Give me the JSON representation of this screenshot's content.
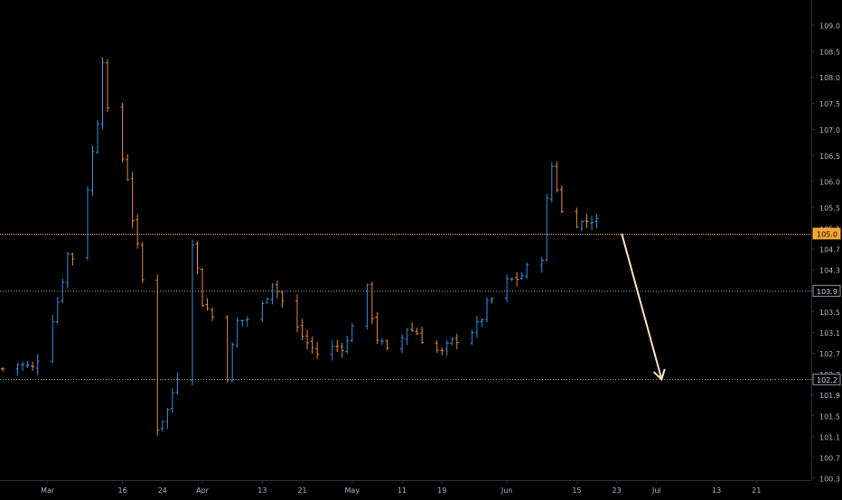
{
  "chart_data": {
    "type": "ohlc",
    "title": "",
    "xlabel": "",
    "ylabel": "",
    "ylim": [
      100.3,
      109.3
    ],
    "y_ticks": [
      "100.3",
      "100.7",
      "101.1",
      "101.5",
      "101.9",
      "102.3",
      "102.7",
      "103.1",
      "103.5",
      "103.9",
      "104.3",
      "104.7",
      "105.1",
      "105.5",
      "106.0",
      "106.5",
      "107.0",
      "107.5",
      "108.0",
      "108.5",
      "109.0"
    ],
    "x_ticks": [
      "Mar",
      "16",
      "24",
      "Apr",
      "13",
      "21",
      "May",
      "11",
      "19",
      "Jun",
      "15",
      "23",
      "Jul",
      "13",
      "21"
    ],
    "grid": false,
    "colors": {
      "up": "#2f8fe0",
      "down": "#e8892c",
      "axis_text": "#b2b5be",
      "axis_line": "#2a2e39",
      "level_line": "#9598a1",
      "current_level": "#f7a634",
      "arrow": "#ffe2bc"
    },
    "horizontal_levels": [
      {
        "price": 105.0,
        "label": "105.0",
        "style": "current"
      },
      {
        "price": 103.9,
        "label": "103.9",
        "style": "dotted"
      },
      {
        "price": 102.2,
        "label": "102.2",
        "style": "dotted"
      }
    ],
    "projection_arrow": {
      "from": [
        "Jun 24",
        105.0
      ],
      "to": [
        "Jul 2",
        102.2
      ],
      "color": "#ffe2bc"
    },
    "path_points": [
      [
        "Feb 21",
        102.4
      ],
      [
        "Feb 24",
        102.5
      ],
      [
        "Feb 27",
        102.4
      ],
      [
        "Mar 1",
        103.1
      ],
      [
        "Mar 3",
        103.7
      ],
      [
        "Mar 5",
        104.6
      ],
      [
        "Mar 7",
        104.5
      ],
      [
        "Mar 9",
        105.9
      ],
      [
        "Mar 11",
        107.2
      ],
      [
        "Mar 12",
        108.4
      ],
      [
        "Mar 13",
        107.3
      ],
      [
        "Mar 15",
        106.8
      ],
      [
        "Mar 17",
        106.1
      ],
      [
        "Mar 18",
        105.3
      ],
      [
        "Mar 20",
        104.1
      ],
      [
        "Mar 21",
        103.2
      ],
      [
        "Mar 22",
        101.7
      ],
      [
        "Mar 23",
        101.3
      ],
      [
        "Mar 25",
        101.6
      ],
      [
        "Mar 27",
        102.3
      ],
      [
        "Mar 29",
        104.2
      ],
      [
        "Mar 30",
        104.9
      ],
      [
        "Apr 1",
        103.7
      ],
      [
        "Apr 3",
        103.4
      ],
      [
        "Apr 4",
        102.3
      ],
      [
        "Apr 6",
        102.3
      ],
      [
        "Apr 8",
        103.3
      ],
      [
        "Apr 11",
        103.4
      ],
      [
        "Apr 13",
        103.6
      ],
      [
        "Apr 15",
        104.1
      ],
      [
        "Apr 17",
        103.7
      ],
      [
        "Apr 19",
        103.3
      ],
      [
        "Apr 22",
        102.9
      ],
      [
        "Apr 24",
        102.7
      ],
      [
        "Apr 27",
        102.8
      ],
      [
        "Apr 30",
        102.9
      ],
      [
        "May 2",
        103.7
      ],
      [
        "May 4",
        103.9
      ],
      [
        "May 6",
        103.0
      ],
      [
        "May 8",
        102.7
      ],
      [
        "May 10",
        102.8
      ],
      [
        "May 12",
        103.2
      ],
      [
        "May 14",
        103.1
      ],
      [
        "May 17",
        102.8
      ],
      [
        "May 19",
        102.7
      ],
      [
        "May 22",
        103.0
      ],
      [
        "May 24",
        103.1
      ],
      [
        "May 26",
        103.2
      ],
      [
        "May 28",
        103.6
      ],
      [
        "May 31",
        104.0
      ],
      [
        "Jun 2",
        104.1
      ],
      [
        "Jun 4",
        104.2
      ],
      [
        "Jun 6",
        104.4
      ],
      [
        "Jun 8",
        104.6
      ],
      [
        "Jun 9",
        105.6
      ],
      [
        "Jun 10",
        106.3
      ],
      [
        "Jun 11",
        105.9
      ],
      [
        "Jun 12",
        105.4
      ],
      [
        "Jun 14",
        105.3
      ],
      [
        "Jun 16",
        105.2
      ],
      [
        "Jun 18",
        105.3
      ],
      [
        "Jun 20",
        105.1
      ],
      [
        "Jun 22",
        105.0
      ]
    ]
  }
}
